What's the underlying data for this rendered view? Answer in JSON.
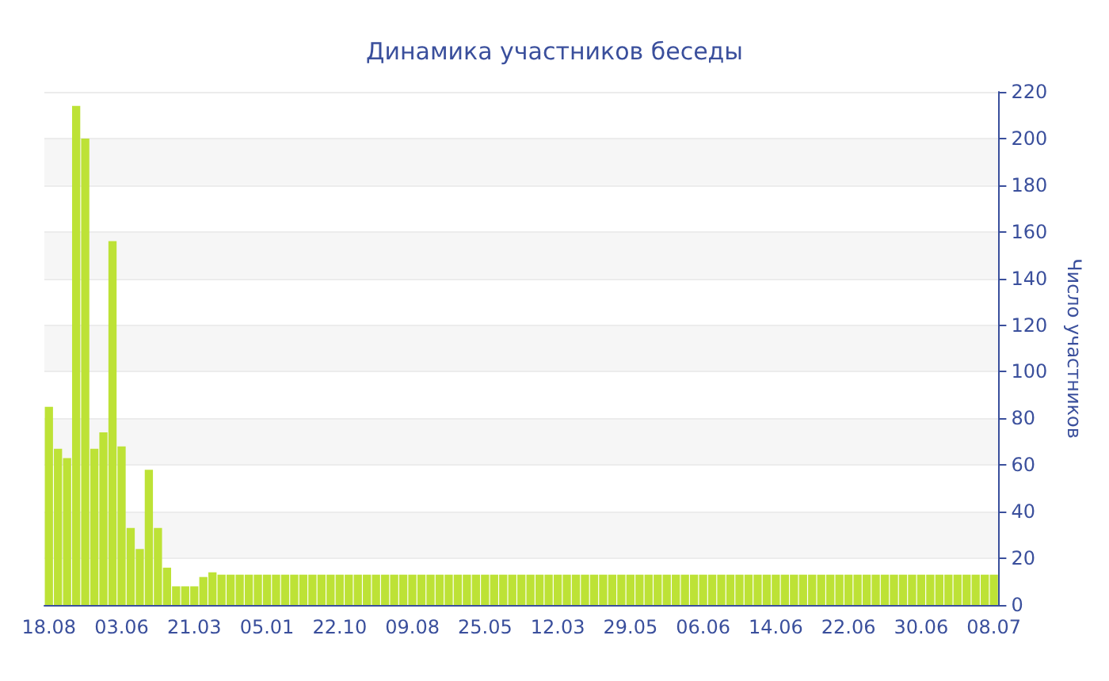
{
  "chart_data": {
    "type": "bar",
    "title": "Динамика участников беседы",
    "ylabel": "Число участников",
    "categories": [
      "18.08",
      null,
      null,
      null,
      null,
      null,
      null,
      null,
      "03.06",
      null,
      null,
      null,
      null,
      null,
      null,
      null,
      "21.03",
      null,
      null,
      null,
      null,
      null,
      null,
      null,
      "05.01",
      null,
      null,
      null,
      null,
      null,
      null,
      null,
      "22.10",
      null,
      null,
      null,
      null,
      null,
      null,
      null,
      "09.08",
      null,
      null,
      null,
      null,
      null,
      null,
      null,
      "25.05",
      null,
      null,
      null,
      null,
      null,
      null,
      null,
      "12.03",
      null,
      null,
      null,
      null,
      null,
      null,
      null,
      "29.05",
      null,
      null,
      null,
      null,
      null,
      null,
      null,
      "06.06",
      null,
      null,
      null,
      null,
      null,
      null,
      null,
      "14.06",
      null,
      null,
      null,
      null,
      null,
      null,
      null,
      "22.06",
      null,
      null,
      null,
      null,
      null,
      null,
      null,
      "30.06",
      null,
      null,
      null,
      null,
      null,
      null,
      null,
      "08.07"
    ],
    "values": [
      85,
      67,
      63,
      214,
      200,
      67,
      74,
      156,
      68,
      33,
      24,
      58,
      33,
      16,
      8,
      8,
      8,
      12,
      14,
      13,
      13,
      13,
      13,
      13,
      13,
      13,
      13,
      13,
      13,
      13,
      13,
      13,
      13,
      13,
      13,
      13,
      13,
      13,
      13,
      13,
      13,
      13,
      13,
      13,
      13,
      13,
      13,
      13,
      13,
      13,
      13,
      13,
      13,
      13,
      13,
      13,
      13,
      13,
      13,
      13,
      13,
      13,
      13,
      13,
      13,
      13,
      13,
      13,
      13,
      13,
      13,
      13,
      13,
      13,
      13,
      13,
      13,
      13,
      13,
      13,
      13,
      13,
      13,
      13,
      13,
      13,
      13,
      13,
      13,
      13,
      13,
      13,
      13,
      13,
      13,
      13,
      13,
      13,
      13,
      13,
      13,
      13,
      13,
      13,
      13
    ],
    "color": "#bde236",
    "ylim": [
      0,
      220
    ],
    "yticks": [
      0,
      20,
      40,
      60,
      80,
      100,
      120,
      140,
      160,
      180,
      200,
      220
    ],
    "grid": "y"
  }
}
